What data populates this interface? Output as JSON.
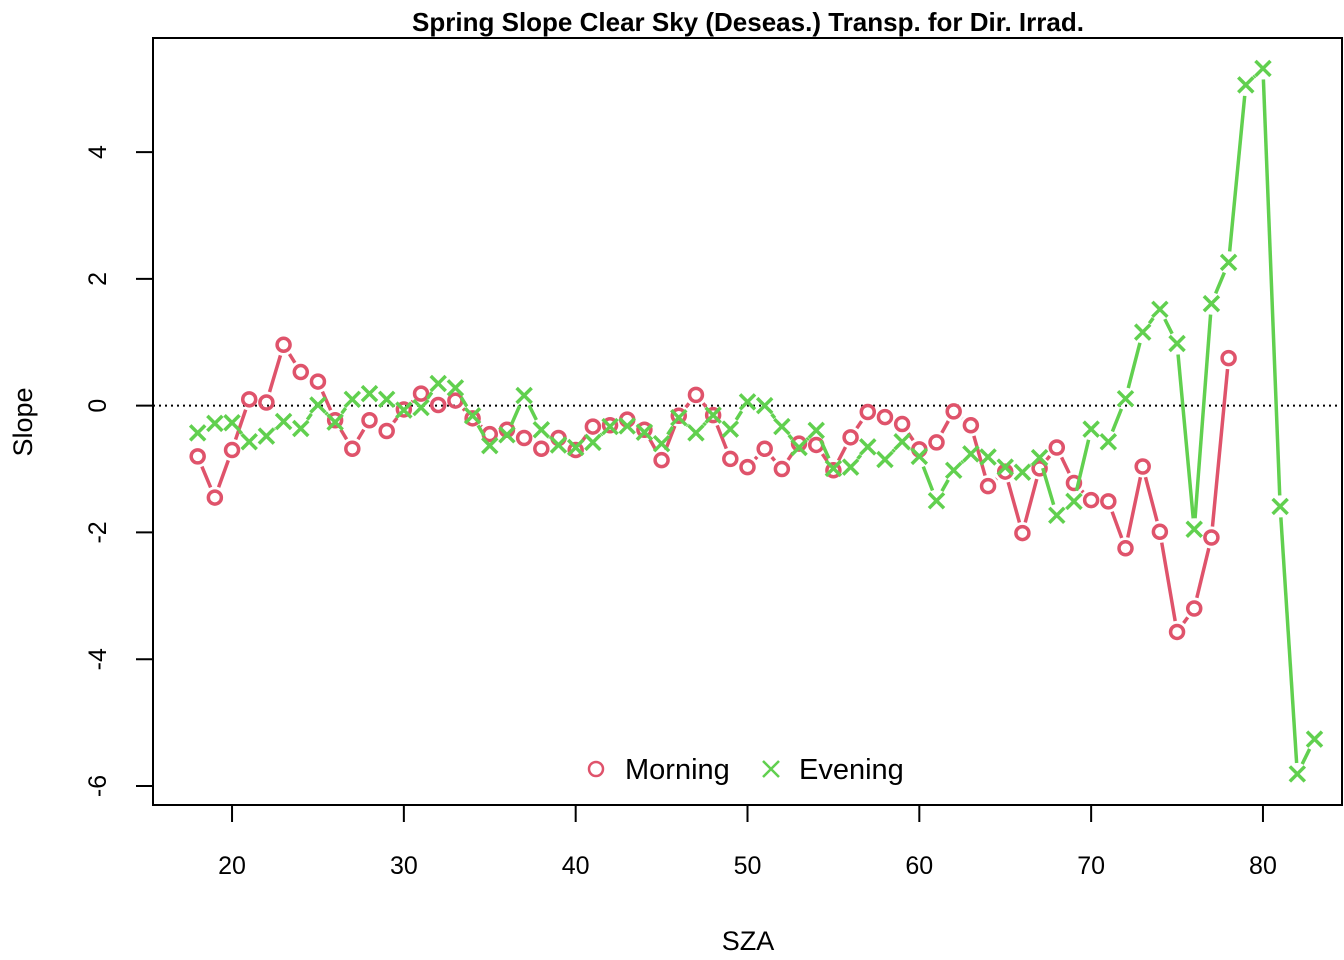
{
  "chart_data": {
    "type": "line",
    "title": "Spring Slope Clear Sky (Deseas.) Transp. for Dir. Irrad.",
    "xlabel": "SZA",
    "ylabel": "Slope",
    "xlim": [
      15.4,
      84.6
    ],
    "ylim": [
      -6.3,
      5.8
    ],
    "xticks": [
      20,
      30,
      40,
      50,
      60,
      70,
      80
    ],
    "yticks": [
      -6,
      -4,
      -2,
      0,
      2,
      4
    ],
    "reference_line": {
      "y": 0,
      "style": "dotted",
      "color": "#000000"
    },
    "legend": {
      "position": "bottom-center",
      "entries": [
        "Morning",
        "Evening"
      ]
    },
    "series": [
      {
        "name": "Morning",
        "marker": "circle",
        "color": "#DF536B",
        "x": [
          18,
          19,
          20,
          21,
          22,
          23,
          24,
          25,
          26,
          27,
          28,
          29,
          30,
          31,
          32,
          33,
          34,
          35,
          36,
          37,
          38,
          39,
          40,
          41,
          42,
          43,
          44,
          45,
          46,
          47,
          48,
          49,
          50,
          51,
          52,
          53,
          54,
          55,
          56,
          57,
          58,
          59,
          60,
          61,
          62,
          63,
          64,
          65,
          66,
          67,
          68,
          69,
          70,
          71,
          72,
          73,
          74,
          75,
          76,
          77,
          78
        ],
        "y": [
          -0.8,
          -1.45,
          -0.7,
          0.1,
          0.05,
          0.96,
          0.53,
          0.38,
          -0.23,
          -0.68,
          -0.23,
          -0.4,
          -0.06,
          0.19,
          0.01,
          0.08,
          -0.2,
          -0.45,
          -0.38,
          -0.51,
          -0.68,
          -0.51,
          -0.7,
          -0.33,
          -0.31,
          -0.22,
          -0.38,
          -0.86,
          -0.16,
          0.17,
          -0.15,
          -0.84,
          -0.97,
          -0.68,
          -1.0,
          -0.6,
          -0.62,
          -1.02,
          -0.5,
          -0.1,
          -0.18,
          -0.29,
          -0.69,
          -0.58,
          -0.09,
          -0.31,
          -1.27,
          -1.04,
          -2.01,
          -0.99,
          -0.66,
          -1.22,
          -1.49,
          -1.51,
          -2.25,
          -0.96,
          -1.99,
          -3.57,
          -3.2,
          -2.08,
          0.75
        ]
      },
      {
        "name": "Evening",
        "marker": "cross",
        "color": "#61D04F",
        "x": [
          18,
          19,
          20,
          21,
          22,
          23,
          24,
          25,
          26,
          27,
          28,
          29,
          30,
          31,
          32,
          33,
          34,
          35,
          36,
          37,
          38,
          39,
          40,
          41,
          42,
          43,
          44,
          45,
          46,
          47,
          48,
          49,
          50,
          51,
          52,
          53,
          54,
          55,
          56,
          57,
          58,
          59,
          60,
          61,
          62,
          63,
          64,
          65,
          66,
          67,
          68,
          69,
          70,
          71,
          72,
          73,
          74,
          75,
          76,
          77,
          78,
          79,
          80,
          81,
          82,
          83
        ],
        "y": [
          -0.43,
          -0.28,
          -0.27,
          -0.57,
          -0.48,
          -0.25,
          -0.36,
          0.01,
          -0.26,
          0.1,
          0.19,
          0.1,
          -0.07,
          -0.03,
          0.35,
          0.28,
          -0.16,
          -0.63,
          -0.46,
          0.16,
          -0.38,
          -0.62,
          -0.66,
          -0.58,
          -0.33,
          -0.32,
          -0.42,
          -0.6,
          -0.19,
          -0.43,
          -0.15,
          -0.37,
          0.06,
          0.0,
          -0.33,
          -0.66,
          -0.39,
          -0.99,
          -0.97,
          -0.65,
          -0.85,
          -0.57,
          -0.8,
          -1.5,
          -1.02,
          -0.76,
          -0.81,
          -0.97,
          -1.05,
          -0.82,
          -1.73,
          -1.51,
          -0.37,
          -0.57,
          0.11,
          1.16,
          1.52,
          0.98,
          -1.95,
          1.61,
          2.26,
          5.06,
          5.32,
          -1.59,
          -5.81,
          -5.26
        ]
      }
    ]
  }
}
